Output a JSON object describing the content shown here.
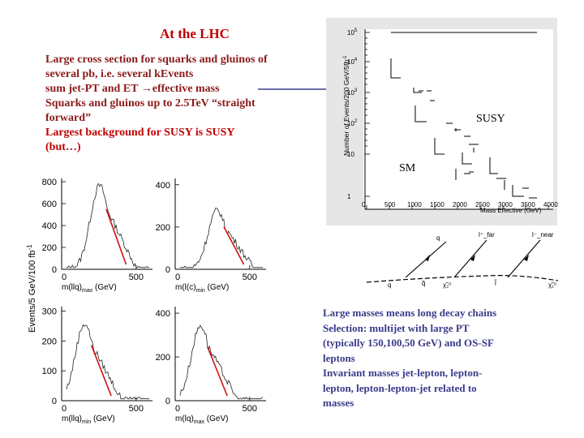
{
  "title": "At the LHC",
  "top_text": {
    "lines": [
      "Large cross section for squarks and gluinos of",
      "several pb, i.e. several kEvents",
      "sum jet-PT and ET →effective mass",
      "Squarks and gluinos up to 2.5TeV “straight",
      "forward”",
      "Largest background for SUSY is SUSY",
      "(but…)"
    ]
  },
  "bottom_text": {
    "lines": [
      "Large masses means long decay chains",
      "Selection: multijet with large PT",
      "(typically 150,100,50 GeV) and OS-SF",
      "leptons",
      "Invariant masses jet-lepton, lepton-",
      "lepton, lepton-lepton-jet related to",
      "masses"
    ]
  },
  "effective_mass_plot": {
    "ylabel": "Number of Events/200 GeV/5fb",
    "ylabel_sup": "-1",
    "xlabel": "Mass Effective (GeV)",
    "x_ticks": [
      "0",
      "500",
      "1000",
      "1500",
      "2000",
      "2500",
      "3000",
      "3500",
      "4000"
    ],
    "y_ticks": [
      "10",
      "10",
      "10",
      "10",
      "10",
      "1"
    ],
    "y_tick_exps": [
      "5",
      "4",
      "3",
      "2",
      "",
      ""
    ],
    "label_susy": "SUSY",
    "label_sm": "SM"
  },
  "diagram": {
    "labels": [
      "q",
      "q̃",
      "χ̃₂⁰",
      "l̃",
      "χ̃₁⁰",
      "q",
      "l⁺_far",
      "l⁻_near"
    ]
  },
  "mass_plots": {
    "ylabel": "Events/5 GeV/100 fb",
    "ylabel_sup": "-1",
    "panels": [
      {
        "xlabel": "m(llq)",
        "xsub": "max",
        "xunit": "(GeV)",
        "y_ticks": [
          "0",
          "200",
          "400",
          "600",
          "800"
        ],
        "x_ticks": [
          "0",
          "500"
        ]
      },
      {
        "xlabel": "m(l(c)",
        "xsub": "min",
        "xunit": "(GeV)",
        "y_ticks": [
          "0",
          "200",
          "400"
        ],
        "x_ticks": [
          "0",
          "500"
        ]
      },
      {
        "xlabel": "m(llq)",
        "xsub": "min",
        "xunit": "(GeV)",
        "y_ticks": [
          "0",
          "100",
          "200",
          "300"
        ],
        "x_ticks": [
          "0",
          "500"
        ]
      },
      {
        "xlabel": "m(lq)",
        "xsub": "max",
        "xunit": "(GeV)",
        "y_ticks": [
          "0",
          "200",
          "400"
        ],
        "x_ticks": [
          "0",
          "500"
        ]
      }
    ]
  }
}
